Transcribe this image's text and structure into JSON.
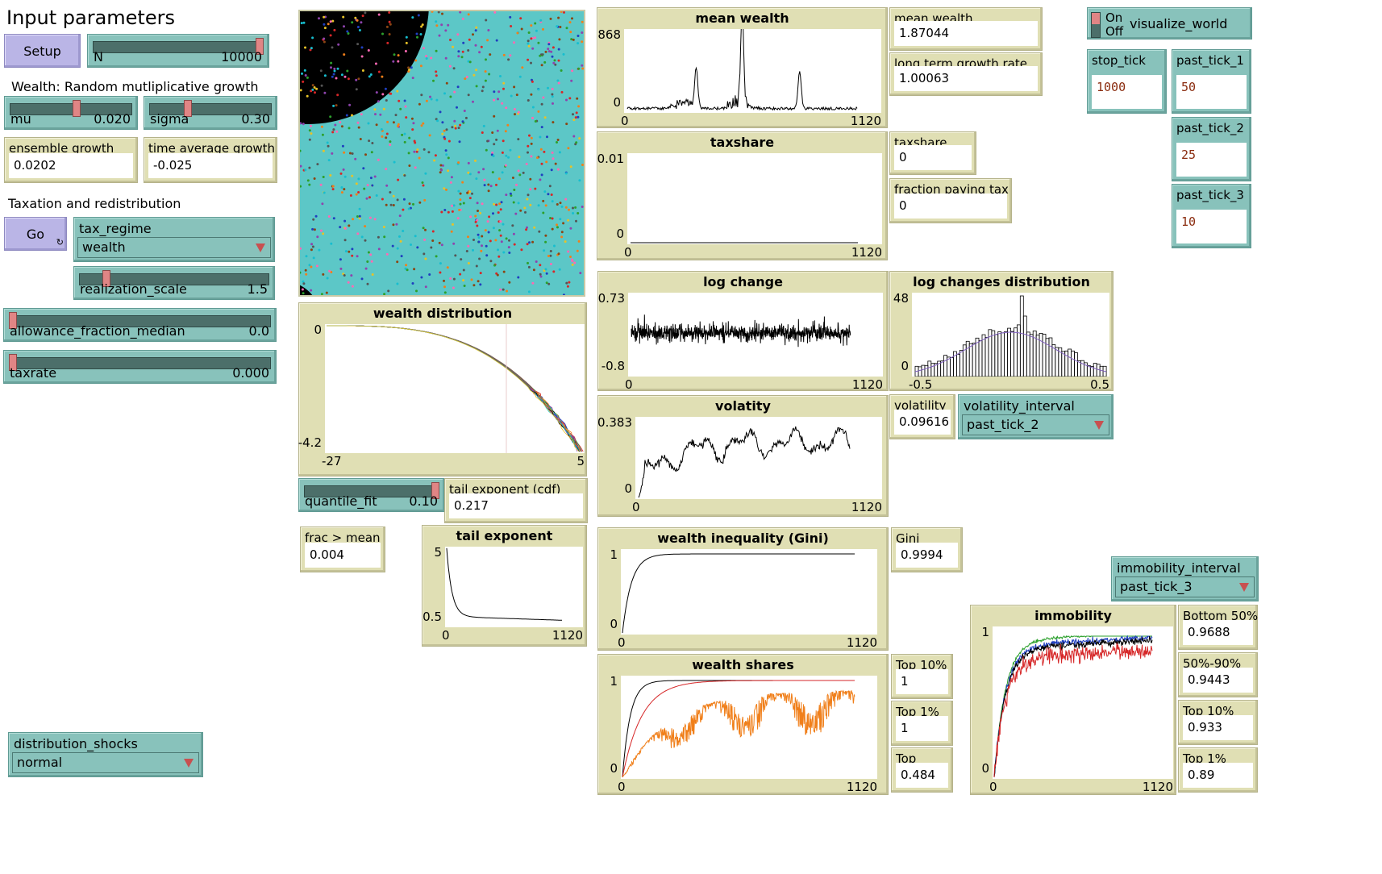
{
  "labels": {
    "input_parameters": "Input parameters",
    "wealth_section": "Wealth: Random mutliplicative growth",
    "tax_section": "Taxation and redistribution"
  },
  "buttons": {
    "setup": "Setup",
    "go": "Go",
    "go_forever_icon": "↻"
  },
  "sliders": {
    "N": {
      "name": "N",
      "value": "10000",
      "fraction": 1.0
    },
    "mu": {
      "name": "mu",
      "value": "0.020",
      "fraction": 0.55
    },
    "sigma": {
      "name": "sigma",
      "value": "0.30",
      "fraction": 0.3
    },
    "realization_scale": {
      "name": "realization_scale",
      "value": "1.5",
      "fraction": 0.13
    },
    "allowance_fraction_median": {
      "name": "allowance_fraction_median",
      "value": "0.0",
      "fraction": 0.0
    },
    "taxrate": {
      "name": "taxrate",
      "value": "0.000",
      "fraction": 0.0
    },
    "quantile_fit": {
      "name": "quantile_fit",
      "value": "0.10",
      "fraction": 1.0
    }
  },
  "choosers": {
    "tax_regime": {
      "name": "tax_regime",
      "value": "wealth"
    },
    "volatility_interval": {
      "name": "volatility_interval",
      "value": "past_tick_2"
    },
    "immobility_interval": {
      "name": "immobility_interval",
      "value": "past_tick_3"
    },
    "distribution_shocks": {
      "name": "distribution_shocks",
      "value": "normal"
    }
  },
  "switch": {
    "on": "On",
    "off": "Off",
    "name": "visualize_world"
  },
  "inputs": {
    "stop_tick": {
      "name": "stop_tick",
      "value": "1000"
    },
    "past_tick_1": {
      "name": "past_tick_1",
      "value": "50"
    },
    "past_tick_2": {
      "name": "past_tick_2",
      "value": "25"
    },
    "past_tick_3": {
      "name": "past_tick_3",
      "value": "10"
    }
  },
  "monitors": {
    "ensemble_growth": {
      "name": "ensemble growth",
      "value": "0.0202"
    },
    "time_average_growth": {
      "name": "time average growth",
      "value": "-0.025"
    },
    "mean_wealth": {
      "name": "mean wealth",
      "value": "1.87044"
    },
    "long_term_growth_rate": {
      "name": "long term growth rate",
      "value": "1.00063"
    },
    "taxshare": {
      "name": "taxshare",
      "value": "0"
    },
    "fraction_paying_tax": {
      "name": "fraction paying tax",
      "value": "0"
    },
    "volatility": {
      "name": "volatility",
      "value": "0.09616"
    },
    "tail_exponent_cdf": {
      "name": "tail exponent (cdf)",
      "value": "0.217"
    },
    "frac_gt_mean": {
      "name": "frac > mean",
      "value": "0.004"
    },
    "gini": {
      "name": "Gini",
      "value": "0.9994"
    },
    "top10": {
      "name": "Top 10%",
      "value": "1"
    },
    "top1": {
      "name": "Top 1%",
      "value": "1"
    },
    "top": {
      "name": "Top",
      "value": "0.484"
    },
    "bottom50": {
      "name": "Bottom 50%",
      "value": "0.9688"
    },
    "p50_90": {
      "name": "50%-90%",
      "value": "0.9443"
    },
    "imm_top10": {
      "name": "Top 10%",
      "value": "0.933"
    },
    "imm_top1": {
      "name": "Top 1%",
      "value": "0.89"
    }
  },
  "plots": {
    "mean_wealth": {
      "title": "mean wealth",
      "ymax": "868",
      "ymin": "0",
      "xmin": "0",
      "xmax": "1120"
    },
    "taxshare": {
      "title": "taxshare",
      "ymax": "0.01",
      "ymin": "0",
      "xmin": "0",
      "xmax": "1120"
    },
    "log_change": {
      "title": "log change",
      "ymax": "0.73",
      "ymin": "-0.8",
      "xmin": "0",
      "xmax": "1120"
    },
    "log_changes_distribution": {
      "title": "log changes distribution",
      "ymax": "48",
      "ymin": "0",
      "xmin": "-0.5",
      "xmax": "0.5"
    },
    "volatity": {
      "title": "volatity",
      "ymax": "0.383",
      "ymin": "0",
      "xmin": "0",
      "xmax": "1120"
    },
    "wealth_distribution": {
      "title": "wealth distribution",
      "ymax": "0",
      "ymin": "-4.2",
      "xmin": "-27",
      "xmax": "5"
    },
    "tail_exponent": {
      "title": "tail exponent",
      "ymax": "5",
      "ymin": "0.5",
      "xmin": "0",
      "xmax": "1120"
    },
    "gini": {
      "title": "wealth inequality (Gini)",
      "ymax": "1",
      "ymin": "0",
      "xmin": "0",
      "xmax": "1120"
    },
    "wealth_shares": {
      "title": "wealth shares",
      "ymax": "1",
      "ymin": "0",
      "xmin": "0",
      "xmax": "1120"
    },
    "immobility": {
      "title": "immobility",
      "ymax": "1",
      "ymin": "0",
      "xmin": "0",
      "xmax": "1120"
    }
  },
  "colors": {
    "teal": "#88c2bb",
    "beige": "#e0dfb4",
    "button": "#bab5e6",
    "world": "#5cc7c7",
    "red": "#d62728",
    "orange": "#f07f1a",
    "green": "#2ca02c",
    "blue": "#1f3fbf",
    "black": "#000000",
    "purple": "#8060c0"
  }
}
